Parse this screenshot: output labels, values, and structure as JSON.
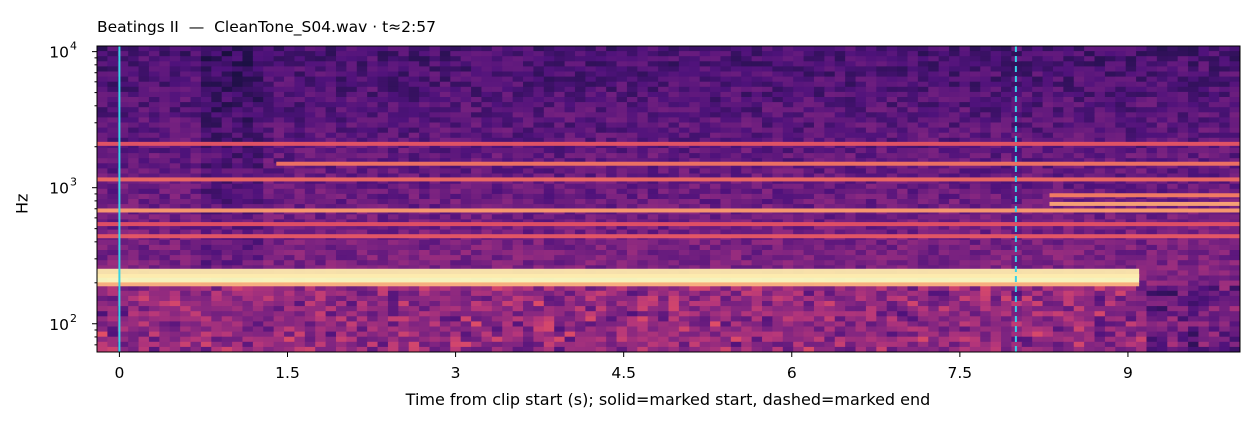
{
  "chart_data": {
    "type": "heatmap",
    "subtype": "spectrogram",
    "title": "Beatings II  —  CleanTone_S04.wav · t≈2:57",
    "xlabel": "Time from clip start (s); solid=marked start, dashed=marked end",
    "ylabel": "Hz",
    "x_ticks": [
      0,
      1.5,
      3,
      4.5,
      6,
      7.5,
      9
    ],
    "x_tick_labels": [
      "0",
      "1.5",
      "3",
      "4.5",
      "6",
      "7.5",
      "9"
    ],
    "xlim": [
      -0.2,
      10.0
    ],
    "y_scale": "log",
    "ylim": [
      62,
      11000
    ],
    "y_ticks": [
      100,
      1000,
      10000
    ],
    "y_tick_labels": [
      "10",
      "10",
      "10"
    ],
    "y_tick_exponents": [
      "2",
      "3",
      "4"
    ],
    "colormap": "magma",
    "markers": [
      {
        "kind": "solid",
        "meaning": "marked start",
        "x": 0.0,
        "color": "#35d4e8"
      },
      {
        "kind": "dashed",
        "meaning": "marked end",
        "x": 8.0,
        "color": "#35d4e8"
      }
    ],
    "bands": [
      {
        "freq": 215,
        "t_start": -0.2,
        "t_end": 9.1,
        "intensity": 1.0
      },
      {
        "freq": 235,
        "t_start": -0.2,
        "t_end": 9.1,
        "intensity": 0.95
      },
      {
        "freq": 195,
        "t_start": -0.2,
        "t_end": 9.1,
        "intensity": 0.8
      },
      {
        "freq": 680,
        "t_start": -0.2,
        "t_end": 10.0,
        "intensity": 0.72
      },
      {
        "freq": 1150,
        "t_start": -0.2,
        "t_end": 10.0,
        "intensity": 0.5
      },
      {
        "freq": 1500,
        "t_start": 1.4,
        "t_end": 10.0,
        "intensity": 0.55
      },
      {
        "freq": 760,
        "t_start": 8.3,
        "t_end": 10.0,
        "intensity": 0.75
      },
      {
        "freq": 880,
        "t_start": 8.3,
        "t_end": 10.0,
        "intensity": 0.6
      },
      {
        "freq": 2100,
        "t_start": -0.2,
        "t_end": 10.0,
        "intensity": 0.4
      },
      {
        "freq": 440,
        "t_start": -0.2,
        "t_end": 10.0,
        "intensity": 0.42
      },
      {
        "freq": 540,
        "t_start": -0.2,
        "t_end": 10.0,
        "intensity": 0.38
      }
    ],
    "grid": false
  }
}
